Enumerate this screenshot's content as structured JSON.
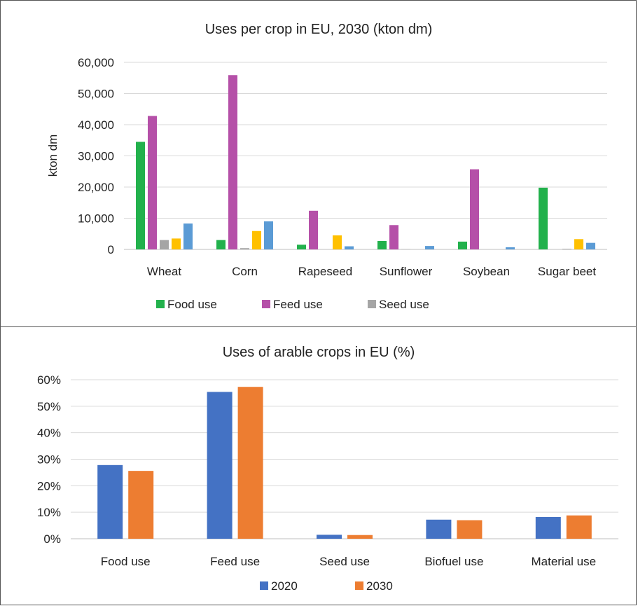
{
  "chart_data": [
    {
      "type": "bar",
      "title": "Uses per crop in EU, 2030 (kton dm)",
      "ylabel": "kton dm",
      "xlabel": "",
      "ylim": [
        0,
        60000
      ],
      "yticks": [
        "0",
        "10,000",
        "20,000",
        "30,000",
        "40,000",
        "50,000",
        "60,000"
      ],
      "categories": [
        "Wheat",
        "Corn",
        "Rapeseed",
        "Sunflower",
        "Soybean",
        "Sugar beet"
      ],
      "series": [
        {
          "name": "Food use",
          "color": "#22b14c",
          "values": [
            34500,
            3000,
            1500,
            2700,
            2500,
            19800
          ]
        },
        {
          "name": "Feed use",
          "color": "#b550a8",
          "values": [
            42800,
            55900,
            12400,
            7800,
            25700,
            0
          ]
        },
        {
          "name": "Seed use",
          "color": "#a5a5a5",
          "values": [
            3000,
            400,
            0,
            100,
            0,
            200
          ]
        },
        {
          "values": [
            3500,
            5900,
            4500,
            0,
            0,
            3300
          ],
          "color": "#ffc000"
        },
        {
          "values": [
            8300,
            9000,
            1000,
            1100,
            700,
            2100
          ],
          "color": "#5b9bd5"
        }
      ],
      "grid": true,
      "legend": "bottom"
    },
    {
      "type": "bar",
      "title": "Uses of arable crops in EU (%)",
      "xlabel": "",
      "ylabel": "",
      "ylim": [
        0,
        60
      ],
      "yticks": [
        "0%",
        "10%",
        "20%",
        "30%",
        "40%",
        "50%",
        "60%"
      ],
      "categories": [
        "Food use",
        "Feed use",
        "Seed use",
        "Biofuel use",
        "Material use"
      ],
      "series": [
        {
          "name": "2020",
          "color": "#4472c4",
          "values": [
            27.8,
            55.4,
            1.5,
            7.2,
            8.2
          ]
        },
        {
          "name": "2030",
          "color": "#ed7d31",
          "values": [
            25.6,
            57.3,
            1.4,
            7.0,
            8.8
          ]
        }
      ],
      "grid": true,
      "legend": "bottom"
    }
  ]
}
